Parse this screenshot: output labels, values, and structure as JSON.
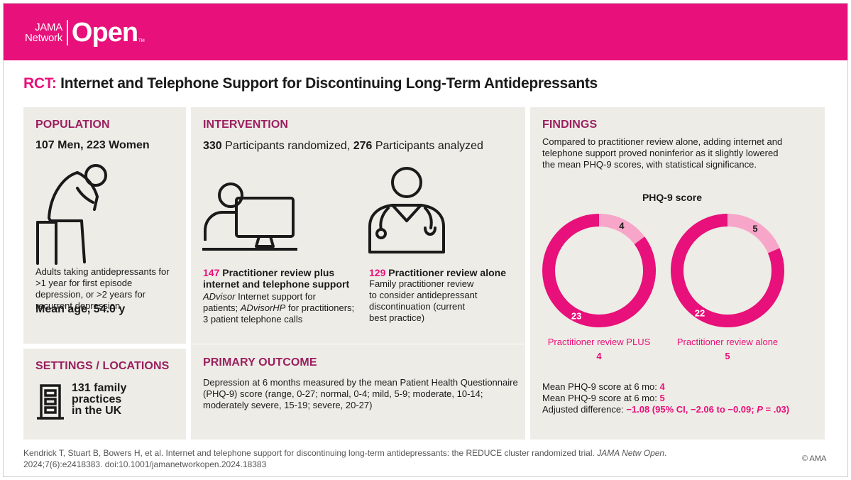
{
  "header": {
    "logo_small_line1": "JAMA",
    "logo_small_line2": "Network",
    "logo_big": "Open",
    "logo_tm": "TM"
  },
  "title": {
    "prefix": "RCT:",
    "text": " Internet and Telephone Support for Discontinuing Long-Term Antidepressants"
  },
  "population": {
    "heading": "POPULATION",
    "counts": "107 Men, 223 Women",
    "description": "Adults taking antidepressants for >1 year for first episode depression, or >2 years for recurrent depression",
    "mean_age": "Mean age, 54.0 y",
    "icon": "seated-distressed-person-icon"
  },
  "settings": {
    "heading": "SETTINGS / LOCATIONS",
    "text_line1": "131 family",
    "text_line2": "practices",
    "text_line3": "in the UK",
    "icon": "building-icon"
  },
  "intervention": {
    "heading": "INTERVENTION",
    "randomized_num": "330",
    "randomized_label": " Participants randomized, ",
    "analyzed_num": "276",
    "analyzed_label": " Participants analyzed",
    "arm1": {
      "num": "147",
      "title_line1": " Practitioner review plus",
      "title_line2": "internet and telephone support",
      "desc_i1": "ADvisor",
      "desc_t1": " Internet support for",
      "desc_t2": "patients; ",
      "desc_i2": "ADvisorHP",
      "desc_t3": " for practitioners;",
      "desc_t4": "3 patient telephone calls",
      "icon": "person-at-computer-icon"
    },
    "arm2": {
      "num": "129",
      "title": " Practitioner review alone",
      "desc_line1": "Family practitioner review",
      "desc_line2": "to consider antidepressant",
      "desc_line3": "discontinuation (current",
      "desc_line4": "best practice)",
      "icon": "doctor-with-stethoscope-icon"
    }
  },
  "outcome": {
    "heading": "PRIMARY OUTCOME",
    "line1": "Depression at 6 months measured by the mean Patient Health Questionnaire",
    "line2": "(PHQ-9) score (range, 0-27; normal, 0-4; mild, 5-9; moderate, 10-14;",
    "line3": "moderately severe, 15-19; severe, 20-27)"
  },
  "findings": {
    "heading": "FINDINGS",
    "line1": "Compared to practitioner review alone, adding internet and",
    "line2": "telephone support proved noninferior as it slightly lowered",
    "line3": "the mean PHQ-9 scores, with statistical significance.",
    "result1_label": "Mean PHQ-9 score at 6 mo: ",
    "result1_value": "4",
    "result2_label": "Mean PHQ-9 score at 6 mo: ",
    "result2_value": "5",
    "diff_label": "Adjusted difference: ",
    "diff_value_a": "−1.08 (95% CI, −2.06 to −0.09; ",
    "diff_value_p": "P",
    "diff_value_b": " = .03)"
  },
  "chart_data": {
    "type": "pie",
    "title": "PHQ-9 score",
    "scale_max": 27,
    "colors": {
      "score": "#f7a6c9",
      "remainder": "#e8107a"
    },
    "donuts": [
      {
        "name": "Practitioner review PLUS",
        "score_label": "4",
        "score": 4,
        "remainder": 23
      },
      {
        "name": "Practitioner review alone",
        "score_label": "5",
        "score": 5,
        "remainder": 22
      }
    ]
  },
  "footer": {
    "citation_a": "Kendrick T, Stuart B, Bowers H, et al. Internet and telephone support for discontinuing long-term antidepressants: the REDUCE cluster randomized trial. ",
    "citation_journal": "JAMA Netw Open",
    "citation_b": ".",
    "citation_line2": "2024;7(6):e2418383. doi:10.1001/jamanetworkopen.2024.18383",
    "copyright": "© AMA"
  },
  "colors": {
    "brand": "#e8107a",
    "heading": "#9b1f5f",
    "panel": "#edece6"
  }
}
